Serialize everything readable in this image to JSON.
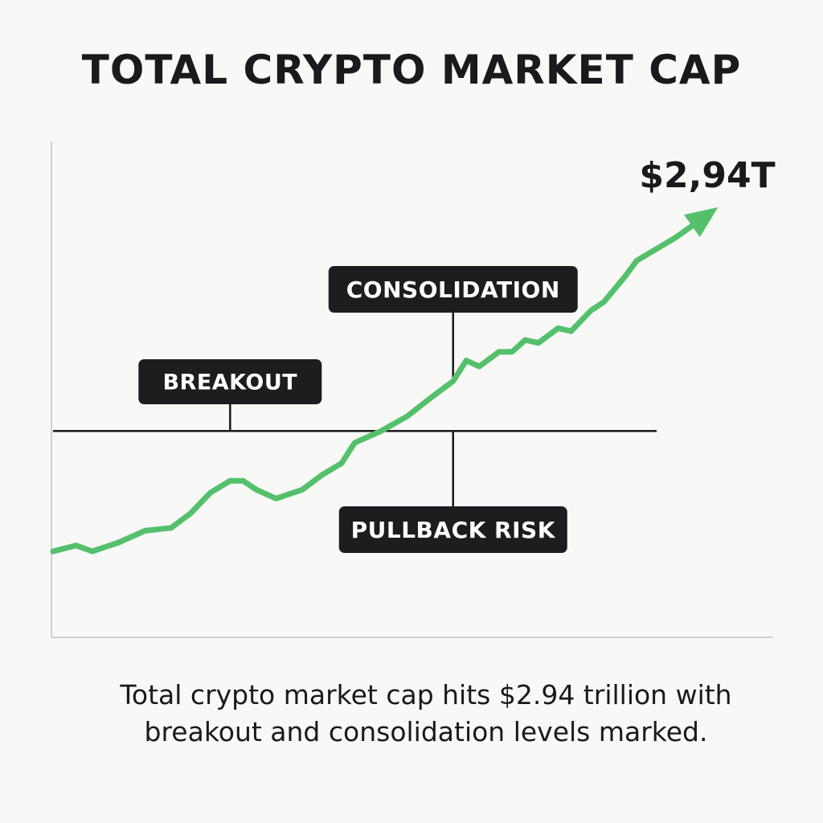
{
  "chart_data": {
    "type": "line",
    "title": "TOTAL CRYPTO MARKET CAP",
    "xlabel": "",
    "ylabel": "",
    "grid": false,
    "legend": "none",
    "y_unit": "trillion USD",
    "ylim": [
      1.5,
      3.0
    ],
    "reference_level": 2.2,
    "series": [
      {
        "color": "#55c06c",
        "x": [
          0,
          0.035,
          0.06,
          0.1,
          0.14,
          0.18,
          0.21,
          0.24,
          0.27,
          0.29,
          0.31,
          0.34,
          0.38,
          0.41,
          0.44,
          0.46,
          0.5,
          0.54,
          0.58,
          0.61,
          0.63,
          0.65,
          0.68,
          0.7,
          0.72,
          0.74,
          0.77,
          0.79,
          0.82,
          0.84,
          0.87,
          0.89,
          0.92,
          0.95,
          0.975,
          1.0
        ],
        "values": [
          1.79,
          1.81,
          1.79,
          1.82,
          1.86,
          1.87,
          1.92,
          1.99,
          2.03,
          2.03,
          2.0,
          1.97,
          2.0,
          2.05,
          2.09,
          2.16,
          2.2,
          2.25,
          2.32,
          2.37,
          2.44,
          2.42,
          2.47,
          2.47,
          2.51,
          2.5,
          2.55,
          2.54,
          2.61,
          2.64,
          2.72,
          2.78,
          2.82,
          2.86,
          2.9,
          2.94
        ]
      }
    ],
    "end_label": "$2,94T",
    "annotations": [
      {
        "text": "BREAKOUT",
        "x": 0.27,
        "y": 2.2
      },
      {
        "text": "CONSOLIDATION",
        "x": 0.61,
        "y": 2.37
      },
      {
        "text": "PULLBACK RISK",
        "x": 0.61,
        "y": 2.2
      }
    ]
  },
  "caption": {
    "line1": "Total crypto market cap hits $2.94 trillion with",
    "line2": "breakout and consolidation levels marked."
  }
}
